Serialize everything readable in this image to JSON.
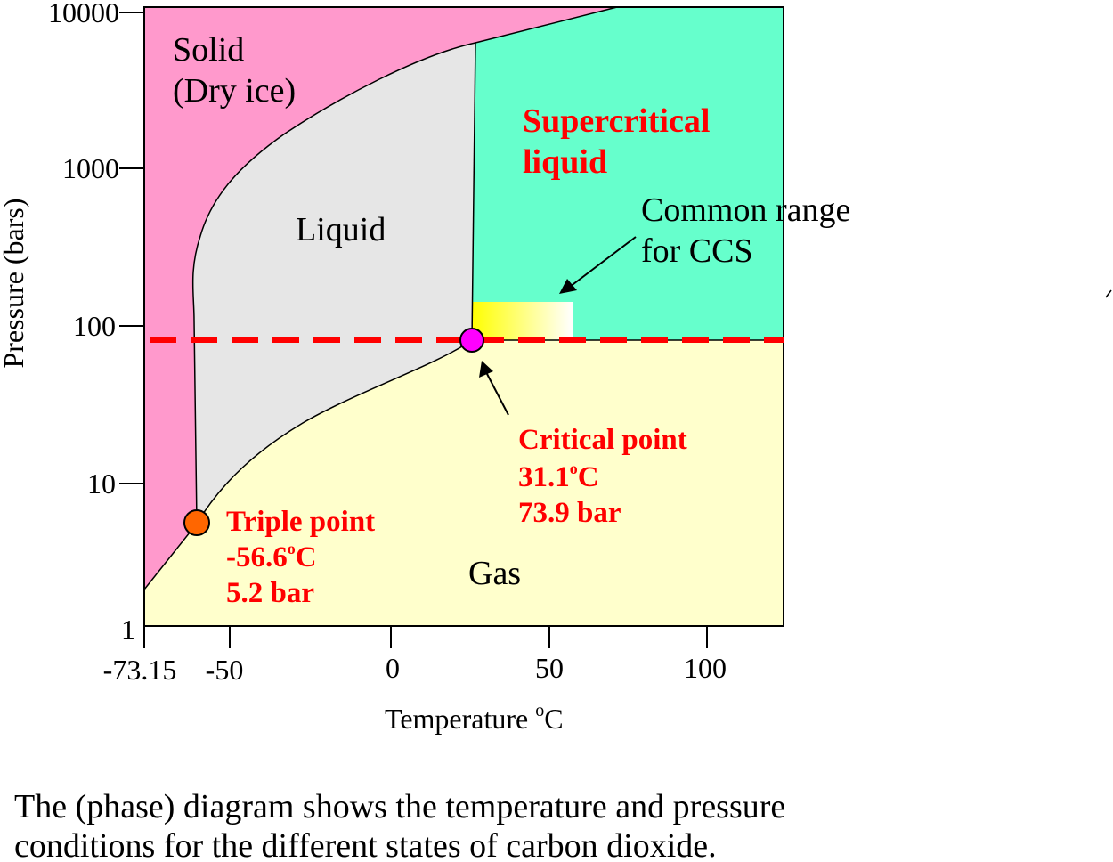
{
  "diagram": {
    "x_axis": {
      "title": "Temperature",
      "unit_sup": "o",
      "unit": "C",
      "ticks": [
        "-73.15",
        "-50",
        "0",
        "50",
        "100"
      ]
    },
    "y_axis": {
      "title": "Pressure (bars)",
      "ticks": [
        "10000",
        "1000",
        "100",
        "10",
        "1"
      ],
      "scale": "log"
    },
    "regions": {
      "solid": [
        "Solid",
        "(Dry ice)"
      ],
      "liquid": "Liquid",
      "gas": "Gas",
      "supercritical": [
        "Supercritical",
        "liquid"
      ]
    },
    "annotations": {
      "ccs": [
        "Common range",
        "for CCS"
      ],
      "critical_point": {
        "title": "Critical point",
        "temp_value": "31.1",
        "temp_sup": "o",
        "temp_unit": "C",
        "pressure": "73.9 bar"
      },
      "triple_point": {
        "title": "Triple point",
        "temp_value": "-56.6",
        "temp_sup": "o",
        "temp_unit": "C",
        "pressure": "5.2 bar"
      }
    },
    "colors": {
      "solid": "#ff99cc",
      "liquid": "#e6e6e6",
      "gas": "#ffffcc",
      "supercritical": "#66ffcc",
      "critical_point": "#ff00ff",
      "triple_point": "#ff6600",
      "threshold_line": "#ff0000",
      "annotation_text": "#ff0000"
    }
  },
  "caption": {
    "line1": "The (phase) diagram shows the temperature and pressure",
    "line2": "conditions for the different states of carbon dioxide."
  }
}
